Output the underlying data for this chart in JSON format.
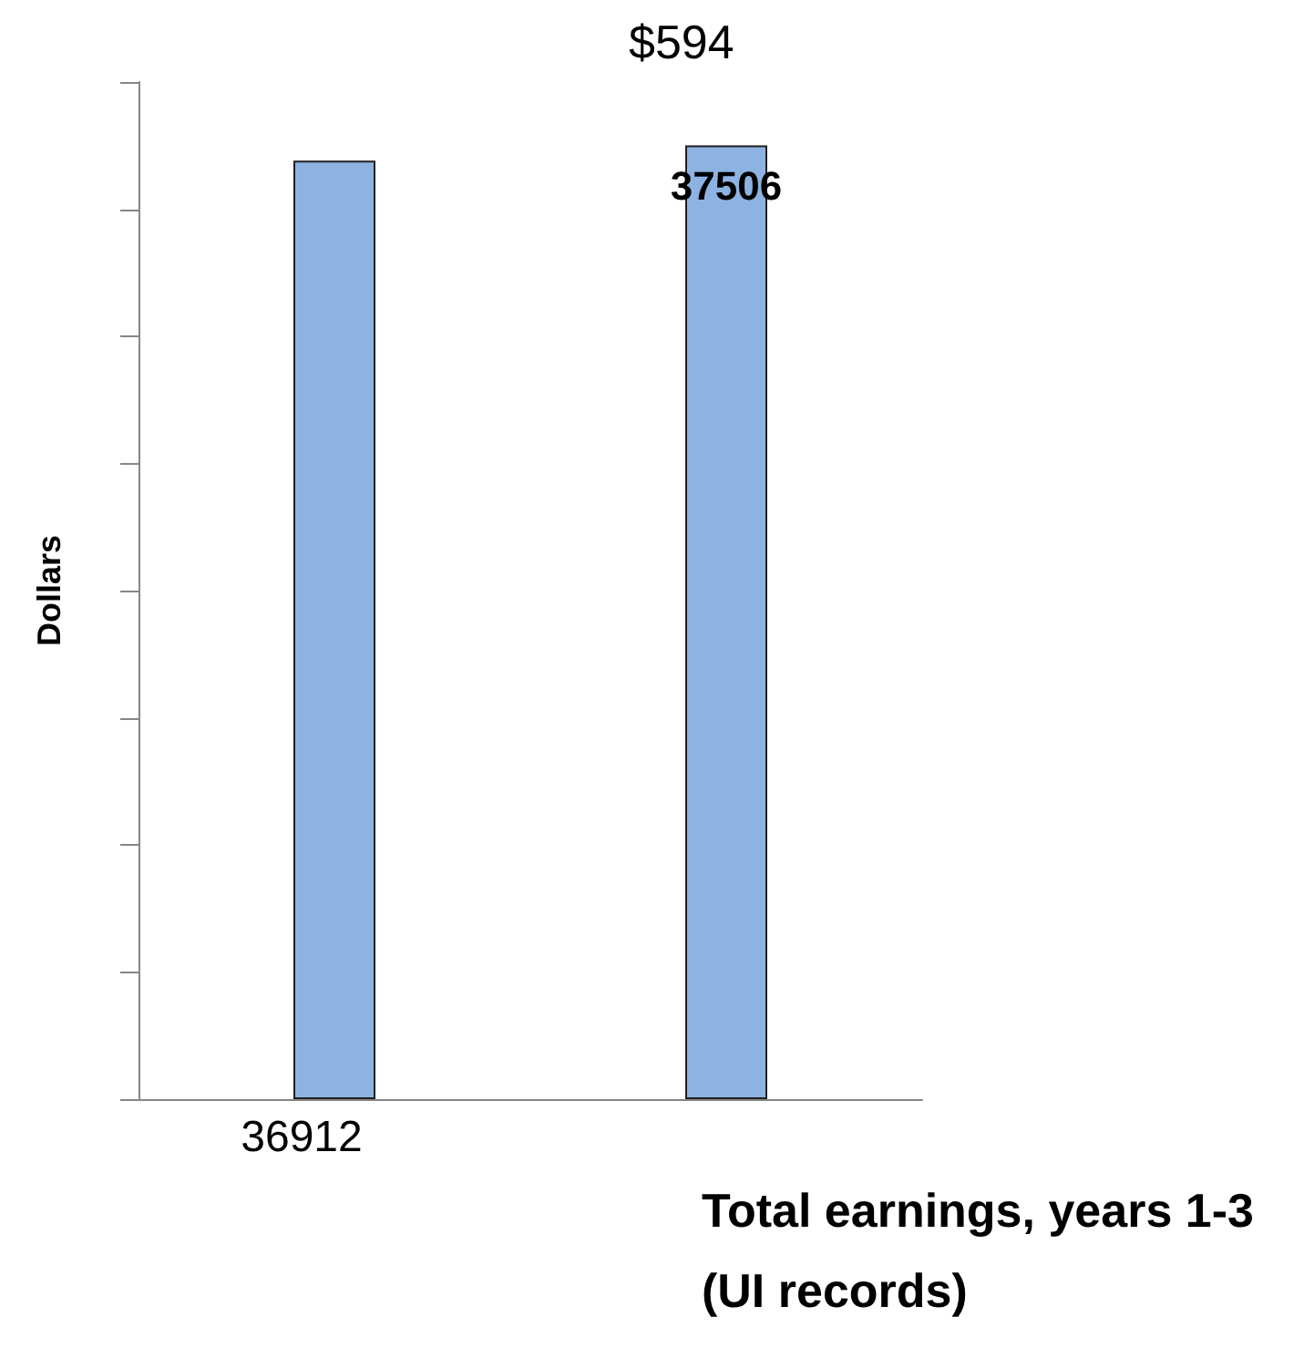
{
  "chart_data": {
    "type": "bar",
    "xlabel": "Total earnings, years 1-3\n(UI records)",
    "ylabel": "Dollars",
    "categories": [
      null,
      null
    ],
    "values": [
      36912,
      37506
    ],
    "value_labels": [
      "36912",
      "37506"
    ],
    "color": "#8db3e2",
    "ylim": [
      0,
      40000
    ],
    "yticks": [
      {
        "value": 0,
        "label": null
      },
      {
        "value": 5000,
        "label": null
      },
      {
        "value": 10000,
        "label": null
      },
      {
        "value": 15000,
        "label": null
      },
      {
        "value": 20000,
        "label": null
      },
      {
        "value": 25000,
        "label": null
      },
      {
        "value": 30000,
        "label": null
      },
      {
        "value": 35000,
        "label": null
      },
      {
        "value": 40000,
        "label": null
      }
    ],
    "annotations": [
      "$594"
    ],
    "grid": false
  }
}
